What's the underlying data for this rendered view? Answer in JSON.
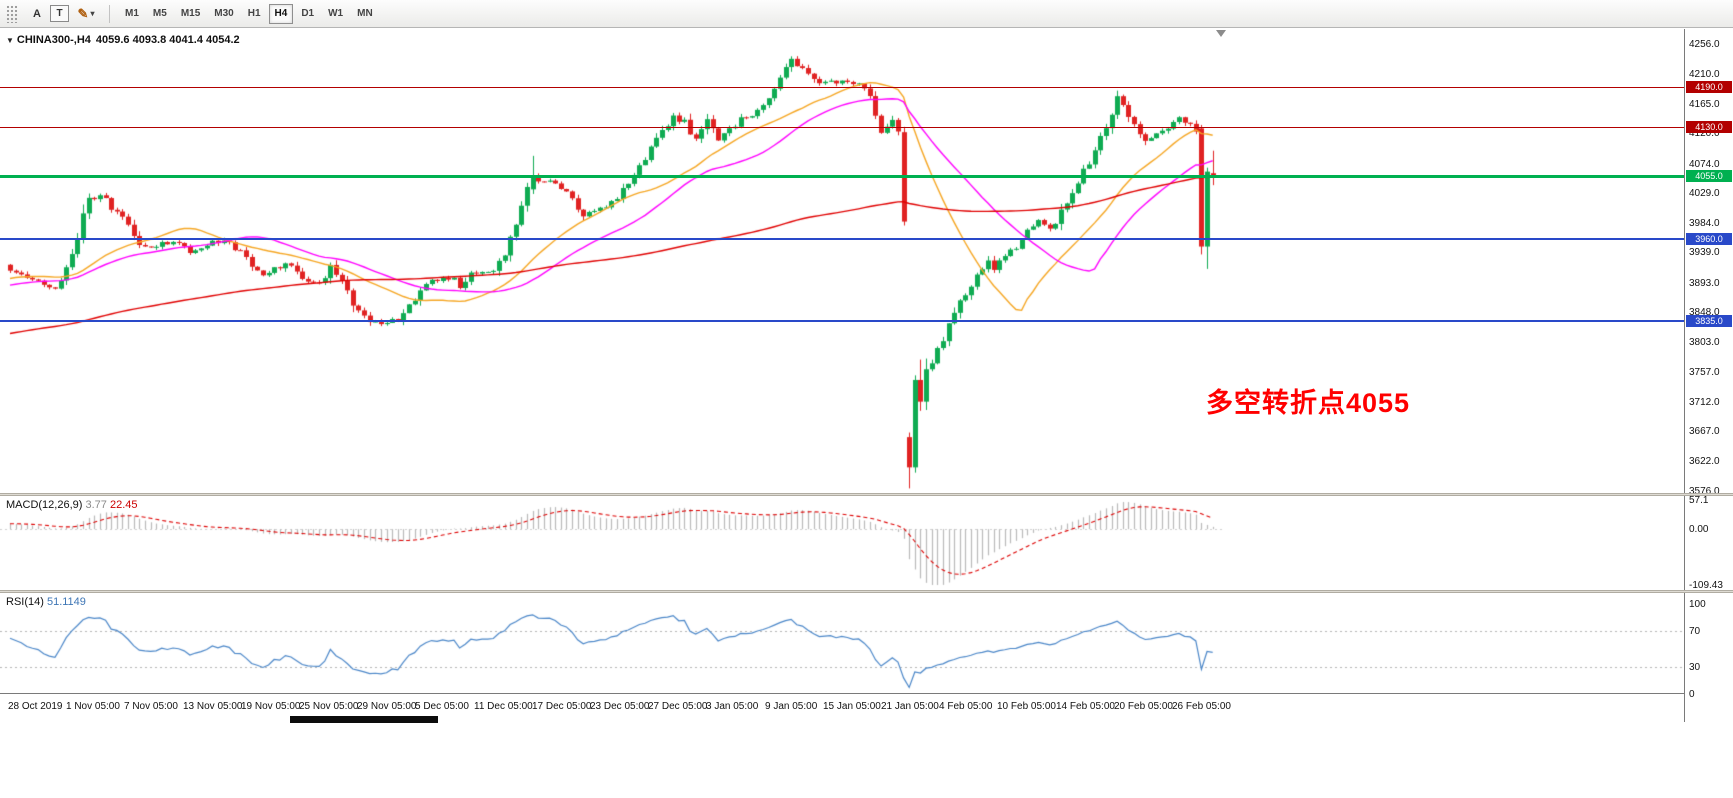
{
  "toolbar": {
    "tools": [
      {
        "label": "A",
        "name": "pointer-tool"
      },
      {
        "label": "T",
        "name": "text-tool"
      },
      {
        "label": "✎",
        "dropdown": "▾",
        "name": "line-style-tool"
      }
    ],
    "timeframes": [
      {
        "label": "M1",
        "active": false
      },
      {
        "label": "M5",
        "active": false
      },
      {
        "label": "M15",
        "active": false
      },
      {
        "label": "M30",
        "active": false
      },
      {
        "label": "H1",
        "active": false
      },
      {
        "label": "H4",
        "active": true
      },
      {
        "label": "D1",
        "active": false
      },
      {
        "label": "W1",
        "active": false
      },
      {
        "label": "MN",
        "active": false
      }
    ]
  },
  "chart": {
    "header": {
      "symbol": "CHINA300-,H4",
      "ohlc": "4059.6 4093.8 4041.4 4054.2"
    },
    "annotation": {
      "text": "多空转折点4055",
      "color": "#ff0000"
    },
    "price_axis": [
      "4256.0",
      "4210.0",
      "4165.0",
      "4120.0",
      "4074.0",
      "4029.0",
      "3984.0",
      "3939.0",
      "3893.0",
      "3848.0",
      "3803.0",
      "3757.0",
      "3712.0",
      "3667.0",
      "3622.0",
      "3576.0"
    ],
    "hlines": [
      {
        "price": 4190.0,
        "label": "4190.0",
        "color": "#b30000",
        "width": 1
      },
      {
        "price": 4130.0,
        "label": "4130.0",
        "color": "#b30000",
        "width": 1
      },
      {
        "price": 4055.0,
        "label": "4055.0",
        "color": "#00b050",
        "width": 3
      },
      {
        "price": 3960.0,
        "label": "3960.0",
        "color": "#2949c9",
        "width": 2
      },
      {
        "price": 3835.0,
        "label": "3835.0",
        "color": "#2949c9",
        "width": 2
      }
    ],
    "time_axis": [
      "28 Oct 2019",
      "1 Nov 05:00",
      "7 Nov 05:00",
      "13 Nov 05:00",
      "19 Nov 05:00",
      "25 Nov 05:00",
      "29 Nov 05:00",
      "5 Dec 05:00",
      "11 Dec 05:00",
      "17 Dec 05:00",
      "23 Dec 05:00",
      "27 Dec 05:00",
      "3 Jan 05:00",
      "9 Jan 05:00",
      "15 Jan 05:00",
      "21 Jan 05:00",
      "4 Feb 05:00",
      "10 Feb 05:00",
      "14 Feb 05:00",
      "20 Feb 05:00",
      "26 Feb 05:00"
    ]
  },
  "macd": {
    "label": "MACD(12,26,9)",
    "value_main": "3.77",
    "value_signal": "22.45",
    "axis": [
      {
        "v": 57.1,
        "label": "57.1"
      },
      {
        "v": 0,
        "label": "0.00"
      },
      {
        "v": -109.43,
        "label": "-109.43"
      }
    ],
    "axis_max": 57.1,
    "axis_min": -109.43,
    "histogram_color": "#b9b9b9",
    "signal_color": "#dd0000"
  },
  "rsi": {
    "label": "RSI(14)",
    "value": "51.1149",
    "axis": [
      {
        "v": 100,
        "label": "100"
      },
      {
        "v": 70,
        "label": "70"
      },
      {
        "v": 30,
        "label": "30"
      },
      {
        "v": 0,
        "label": "0"
      }
    ],
    "levels": [
      70,
      30
    ],
    "color": "#4a86c8",
    "period": 14
  },
  "chart_data": {
    "type": "candlestick",
    "symbol": "CHINA300-",
    "timeframe": "H4",
    "title": "CHINA300-,H4",
    "last_bar_ohlc": {
      "open": 4059.6,
      "high": 4093.8,
      "low": 4041.4,
      "close": 4054.2
    },
    "ylim": [
      3576.0,
      4256.0
    ],
    "num_bars": 215,
    "up_color": "#0fab52",
    "down_color": "#e02222",
    "price_anchors": [
      [
        0,
        3915
      ],
      [
        4,
        3898
      ],
      [
        8,
        3886
      ],
      [
        11,
        3932
      ],
      [
        14,
        4026
      ],
      [
        17,
        4018
      ],
      [
        20,
        3990
      ],
      [
        23,
        3952
      ],
      [
        26,
        3946
      ],
      [
        29,
        3960
      ],
      [
        32,
        3938
      ],
      [
        35,
        3952
      ],
      [
        38,
        3962
      ],
      [
        41,
        3940
      ],
      [
        43,
        3914
      ],
      [
        46,
        3906
      ],
      [
        49,
        3922
      ],
      [
        52,
        3898
      ],
      [
        55,
        3888
      ],
      [
        57,
        3916
      ],
      [
        59,
        3898
      ],
      [
        61,
        3862
      ],
      [
        63,
        3840
      ],
      [
        66,
        3830
      ],
      [
        69,
        3838
      ],
      [
        72,
        3868
      ],
      [
        75,
        3896
      ],
      [
        78,
        3902
      ],
      [
        80,
        3890
      ],
      [
        83,
        3912
      ],
      [
        86,
        3908
      ],
      [
        88,
        3938
      ],
      [
        90,
        3984
      ],
      [
        92,
        4034
      ],
      [
        94,
        4052
      ],
      [
        96,
        4046
      ],
      [
        99,
        4028
      ],
      [
        102,
        3992
      ],
      [
        104,
        4002
      ],
      [
        107,
        4018
      ],
      [
        110,
        4040
      ],
      [
        112,
        4072
      ],
      [
        114,
        4098
      ],
      [
        116,
        4124
      ],
      [
        118,
        4148
      ],
      [
        120,
        4136
      ],
      [
        122,
        4112
      ],
      [
        124,
        4140
      ],
      [
        126,
        4106
      ],
      [
        128,
        4124
      ],
      [
        131,
        4148
      ],
      [
        134,
        4158
      ],
      [
        136,
        4184
      ],
      [
        139,
        4234
      ],
      [
        141,
        4218
      ],
      [
        143,
        4202
      ],
      [
        146,
        4196
      ],
      [
        148,
        4206
      ],
      [
        151,
        4198
      ],
      [
        153,
        4176
      ],
      [
        155,
        4120
      ],
      [
        157,
        4136
      ],
      [
        158,
        4122
      ],
      [
        159,
        3986
      ],
      [
        160,
        3612
      ],
      [
        161,
        3745
      ],
      [
        162,
        3712
      ],
      [
        163,
        3756
      ],
      [
        164,
        3772
      ],
      [
        166,
        3806
      ],
      [
        168,
        3846
      ],
      [
        170,
        3876
      ],
      [
        172,
        3904
      ],
      [
        174,
        3926
      ],
      [
        175,
        3912
      ],
      [
        177,
        3934
      ],
      [
        179,
        3950
      ],
      [
        181,
        3972
      ],
      [
        183,
        3986
      ],
      [
        185,
        3974
      ],
      [
        187,
        4000
      ],
      [
        189,
        4028
      ],
      [
        191,
        4062
      ],
      [
        193,
        4094
      ],
      [
        195,
        4128
      ],
      [
        197,
        4178
      ],
      [
        198,
        4164
      ],
      [
        200,
        4130
      ],
      [
        202,
        4108
      ],
      [
        204,
        4124
      ],
      [
        206,
        4128
      ],
      [
        208,
        4142
      ],
      [
        210,
        4136
      ],
      [
        211,
        4128
      ],
      [
        212,
        3948
      ],
      [
        213,
        4062
      ],
      [
        214,
        4054
      ]
    ],
    "overrides": {
      "93": [
        4035,
        4086,
        4028,
        4054
      ],
      "159": [
        4122,
        4130,
        3980,
        3986
      ],
      "160": [
        3658,
        3665,
        3580,
        3612
      ],
      "161": [
        3612,
        3752,
        3604,
        3745
      ],
      "162": [
        3745,
        3776,
        3698,
        3712
      ],
      "212": [
        4128,
        4133,
        3936,
        3948
      ],
      "213": [
        3948,
        4068,
        3914,
        4062
      ],
      "214": [
        4059.6,
        4093.8,
        4041.4,
        4054.2
      ]
    },
    "moving_averages": [
      {
        "period": 21,
        "color": "#f5a623"
      },
      {
        "period": 34,
        "color": "#ff00ff"
      },
      {
        "period": 130,
        "color": "#e00000"
      }
    ],
    "indicators": [
      {
        "name": "MACD",
        "params": [
          12,
          26,
          9
        ],
        "current": [
          3.77,
          22.45
        ]
      },
      {
        "name": "RSI",
        "params": [
          14
        ],
        "current": 51.1149
      }
    ]
  }
}
